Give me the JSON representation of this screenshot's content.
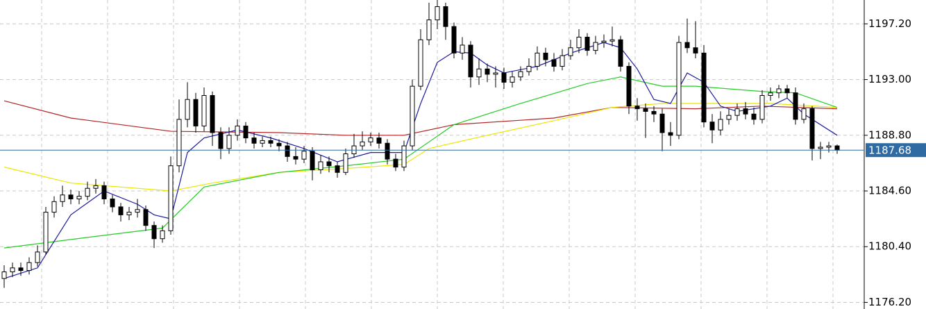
{
  "chart_data": {
    "type": "candlestick",
    "ylim": [
      1175.7,
      1199.0
    ],
    "yticks": [
      {
        "value": 1197.2,
        "label": "1197.20"
      },
      {
        "value": 1193.0,
        "label": "1193.00"
      },
      {
        "value": 1188.8,
        "label": "1188.80"
      },
      {
        "value": 1184.6,
        "label": "1184.60"
      },
      {
        "value": 1180.4,
        "label": "1180.40"
      },
      {
        "value": 1176.2,
        "label": "1176.20"
      }
    ],
    "grid": true,
    "up_color": "#ffffff",
    "down_color": "#000000",
    "last_price": 1187.68,
    "last_price_color": "#2f6aa3",
    "open": [
      1178.0,
      1178.5,
      1178.8,
      1178.6,
      1179.2,
      1180.0,
      1183.0,
      1183.8,
      1184.3,
      1184.0,
      1184.2,
      1184.8,
      1185.0,
      1184.0,
      1183.4,
      1182.8,
      1183.0,
      1183.2,
      1182.0,
      1181.0,
      1181.6,
      1186.5,
      1190.0,
      1191.5,
      1189.5,
      1191.8,
      1189.0,
      1187.8,
      1188.8,
      1189.5,
      1188.6,
      1188.2,
      1188.4,
      1188.2,
      1188.0,
      1187.2,
      1187.0,
      1187.6,
      1186.2,
      1186.8,
      1186.5,
      1186.0,
      1187.4,
      1188.0,
      1188.3,
      1188.6,
      1188.2,
      1187.0,
      1186.4,
      1188.0,
      1192.5,
      1196.0,
      1197.5,
      1198.5,
      1197.0,
      1195.0,
      1195.6,
      1193.2,
      1193.8,
      1193.4,
      1193.5,
      1192.8,
      1193.2,
      1193.6,
      1194.0,
      1195.0,
      1194.5,
      1194.0,
      1194.8,
      1195.4,
      1196.2,
      1195.2,
      1195.8,
      1195.9,
      1196.0,
      1194.0,
      1191.0,
      1190.8,
      1190.6,
      1190.4,
      1189.0,
      1188.8,
      1195.8,
      1195.4,
      1195.0,
      1189.8,
      1189.2,
      1190.0,
      1190.3,
      1190.8,
      1190.4,
      1190.0,
      1191.8,
      1192.0,
      1192.3,
      1192.0,
      1190.0,
      1190.8,
      1187.8,
      1187.9,
      1188.0
    ],
    "high": [
      1179.0,
      1179.2,
      1179.2,
      1179.6,
      1180.5,
      1183.4,
      1184.2,
      1185.0,
      1184.7,
      1184.6,
      1185.3,
      1185.5,
      1185.3,
      1184.3,
      1183.7,
      1183.4,
      1184.0,
      1183.5,
      1182.3,
      1182.0,
      1187.2,
      1191.5,
      1192.8,
      1192.0,
      1192.4,
      1192.1,
      1189.4,
      1189.4,
      1190.0,
      1189.8,
      1189.0,
      1188.7,
      1188.7,
      1188.5,
      1188.3,
      1187.9,
      1188.0,
      1187.9,
      1187.3,
      1187.2,
      1186.8,
      1187.8,
      1188.9,
      1189.1,
      1189.0,
      1189.0,
      1188.5,
      1187.4,
      1188.4,
      1193.0,
      1196.8,
      1198.8,
      1199.0,
      1198.8,
      1197.3,
      1196.2,
      1195.9,
      1194.6,
      1194.2,
      1194.0,
      1193.9,
      1193.6,
      1194.0,
      1194.6,
      1195.5,
      1195.4,
      1195.0,
      1195.3,
      1196.0,
      1196.8,
      1196.5,
      1196.3,
      1196.4,
      1197.0,
      1196.3,
      1194.3,
      1191.6,
      1191.2,
      1191.0,
      1190.8,
      1189.8,
      1196.3,
      1197.6,
      1197.4,
      1195.6,
      1190.4,
      1190.6,
      1190.8,
      1191.2,
      1191.3,
      1190.9,
      1192.2,
      1192.4,
      1192.6,
      1192.6,
      1192.4,
      1191.2,
      1191.0,
      1188.3,
      1188.3,
      1188.1
    ],
    "low": [
      1177.3,
      1178.1,
      1178.2,
      1178.3,
      1178.9,
      1179.8,
      1182.6,
      1183.4,
      1183.6,
      1183.6,
      1183.9,
      1184.4,
      1183.6,
      1183.0,
      1182.3,
      1182.4,
      1182.6,
      1181.6,
      1180.3,
      1180.7,
      1181.3,
      1186.0,
      1189.4,
      1189.0,
      1189.1,
      1188.0,
      1187.0,
      1187.4,
      1188.4,
      1188.2,
      1187.8,
      1187.9,
      1187.9,
      1187.6,
      1186.8,
      1186.6,
      1186.7,
      1185.4,
      1185.9,
      1186.0,
      1185.6,
      1185.8,
      1187.1,
      1187.7,
      1188.0,
      1187.8,
      1186.6,
      1186.1,
      1186.1,
      1187.7,
      1192.2,
      1195.6,
      1196.8,
      1196.0,
      1194.6,
      1194.5,
      1192.4,
      1192.6,
      1192.8,
      1192.4,
      1192.3,
      1192.4,
      1192.9,
      1193.3,
      1193.7,
      1194.0,
      1193.6,
      1193.7,
      1194.5,
      1195.0,
      1194.8,
      1194.9,
      1195.4,
      1195.5,
      1193.6,
      1190.4,
      1189.9,
      1188.6,
      1189.8,
      1187.6,
      1188.0,
      1188.5,
      1195.0,
      1194.6,
      1189.4,
      1188.2,
      1188.8,
      1189.6,
      1189.9,
      1190.0,
      1189.6,
      1189.7,
      1191.4,
      1191.6,
      1191.6,
      1189.6,
      1189.7,
      1186.9,
      1187.0,
      1187.5,
      1187.4
    ],
    "close": [
      1178.5,
      1178.8,
      1178.6,
      1179.2,
      1180.0,
      1183.0,
      1183.8,
      1184.3,
      1184.0,
      1184.2,
      1184.8,
      1185.0,
      1184.0,
      1183.4,
      1182.8,
      1183.0,
      1183.2,
      1182.0,
      1181.0,
      1181.6,
      1186.5,
      1190.0,
      1191.5,
      1189.5,
      1191.8,
      1189.0,
      1187.8,
      1188.8,
      1189.5,
      1188.6,
      1188.2,
      1188.4,
      1188.2,
      1188.0,
      1187.2,
      1187.0,
      1187.6,
      1186.2,
      1186.8,
      1186.5,
      1186.0,
      1187.4,
      1188.0,
      1188.3,
      1188.6,
      1188.2,
      1187.0,
      1186.4,
      1188.0,
      1192.5,
      1196.0,
      1197.5,
      1198.5,
      1197.0,
      1195.0,
      1195.6,
      1193.2,
      1193.8,
      1193.4,
      1193.5,
      1192.8,
      1193.2,
      1193.6,
      1194.0,
      1195.0,
      1194.5,
      1194.0,
      1194.8,
      1195.4,
      1196.2,
      1195.2,
      1195.8,
      1195.9,
      1196.0,
      1194.0,
      1191.0,
      1190.8,
      1190.6,
      1190.4,
      1189.0,
      1188.8,
      1195.8,
      1195.4,
      1195.0,
      1189.8,
      1189.2,
      1190.0,
      1190.3,
      1190.8,
      1190.4,
      1190.0,
      1191.8,
      1192.0,
      1192.3,
      1192.0,
      1190.0,
      1190.8,
      1187.8,
      1187.9,
      1188.0,
      1187.68
    ],
    "series": [
      {
        "color": "#b22222",
        "x": [
          0,
          8,
          20,
          33,
          41,
          48,
          54,
          66,
          73,
          83,
          91,
          100
        ],
        "values": [
          1191.4,
          1190.1,
          1189.1,
          1189.0,
          1188.8,
          1188.8,
          1189.6,
          1190.1,
          1190.9,
          1190.8,
          1191.0,
          1190.8
        ]
      },
      {
        "color": "#e8e800",
        "x": [
          0,
          8,
          20,
          25,
          33,
          41,
          48,
          51,
          58,
          66,
          73,
          79,
          83,
          92,
          100
        ],
        "values": [
          1186.4,
          1185.2,
          1184.6,
          1185.2,
          1186.0,
          1186.3,
          1186.6,
          1187.8,
          1188.8,
          1189.9,
          1190.9,
          1191.2,
          1191.2,
          1191.2,
          1190.9
        ]
      },
      {
        "color": "#22cc22",
        "x": [
          0,
          10,
          19,
          24,
          33,
          41,
          48,
          54,
          62,
          70,
          74,
          79,
          83,
          91,
          95,
          100
        ],
        "values": [
          1180.3,
          1181.1,
          1181.8,
          1184.9,
          1186.0,
          1186.5,
          1187.0,
          1189.6,
          1191.2,
          1192.7,
          1193.2,
          1192.5,
          1192.5,
          1192.1,
          1192.0,
          1190.9
        ]
      },
      {
        "color": "#1a1aa0",
        "x": [
          0,
          4,
          8,
          12,
          16,
          18,
          20,
          22,
          24,
          28,
          32,
          36,
          40,
          44,
          48,
          50,
          52,
          54,
          56,
          58,
          60,
          64,
          68,
          72,
          74,
          76,
          78,
          80,
          82,
          84,
          86,
          88,
          92,
          94,
          96,
          100
        ],
        "values": [
          1178.0,
          1178.8,
          1182.8,
          1184.6,
          1183.6,
          1182.8,
          1182.5,
          1187.5,
          1188.6,
          1189.2,
          1188.6,
          1187.8,
          1186.8,
          1187.5,
          1187.5,
          1191.2,
          1194.3,
          1195.1,
          1195.0,
          1194.1,
          1193.5,
          1194.0,
          1195.0,
          1195.8,
          1195.4,
          1193.8,
          1191.5,
          1191.2,
          1193.5,
          1192.8,
          1191.0,
          1190.6,
          1191.0,
          1191.6,
          1190.4,
          1188.8
        ]
      }
    ]
  }
}
